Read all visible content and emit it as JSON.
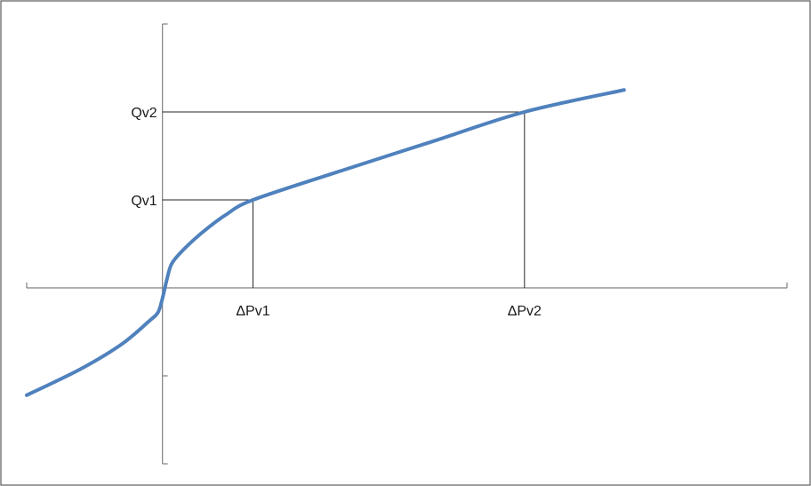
{
  "chart_data": {
    "type": "line",
    "title": "",
    "xlabel": "",
    "ylabel": "",
    "grid": false,
    "legend": "none",
    "xlim": [
      -1.5,
      6.9
    ],
    "ylim": [
      -2.0,
      3.0
    ],
    "x_ticks": [
      {
        "value": 1.0,
        "label": "ΔPv1"
      },
      {
        "value": 4.0,
        "label": "ΔPv2"
      }
    ],
    "y_ticks": [
      {
        "value": 1.0,
        "label": "Qv1"
      },
      {
        "value": 2.0,
        "label": "Qv2"
      }
    ],
    "minor_y_ticks": [
      -1.0
    ],
    "guides": [
      {
        "x": 1.0,
        "y": 1.0
      },
      {
        "x": 4.0,
        "y": 2.0
      }
    ],
    "series": [
      {
        "color": "#4f81bd",
        "x": [
          -1.5,
          -0.9,
          -0.45,
          -0.15,
          -0.05,
          0.0,
          0.05,
          0.1,
          0.2,
          0.35,
          0.5,
          0.7,
          1.0,
          2.0,
          3.0,
          4.0,
          5.1
        ],
        "y": [
          -1.22,
          -0.92,
          -0.64,
          -0.38,
          -0.28,
          -0.12,
          0.1,
          0.27,
          0.4,
          0.55,
          0.68,
          0.83,
          1.0,
          1.34,
          1.67,
          2.0,
          2.25
        ]
      }
    ]
  }
}
